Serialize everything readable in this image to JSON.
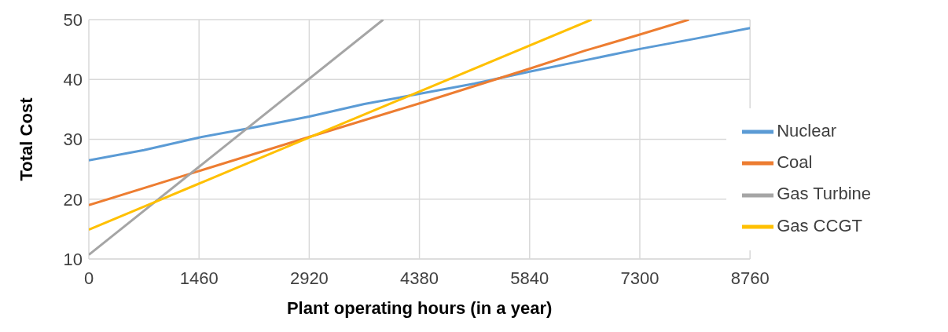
{
  "chart_data": {
    "type": "line",
    "xlabel": "Plant operating hours (in a year)",
    "ylabel": "Total Cost",
    "xlim": [
      0,
      8760
    ],
    "xticks": [
      0,
      1460,
      2920,
      4380,
      5840,
      7300,
      8760
    ],
    "ylim": [
      10,
      50
    ],
    "yticks": [
      10,
      20,
      30,
      40,
      50
    ],
    "grid": true,
    "legend": "right",
    "marker": "none",
    "line_style": "solid",
    "series": [
      {
        "name": "Nuclear",
        "color": "#5b9bd5",
        "x": [
          0,
          730,
          1460,
          2190,
          2920,
          3650,
          4380,
          5110,
          5840,
          6570,
          7300,
          8030,
          8760
        ],
        "values": [
          26.5,
          28.2,
          30.3,
          32,
          33.8,
          35.9,
          37.6,
          39.3,
          41.3,
          43.2,
          45.1,
          46.8,
          48.6
        ]
      },
      {
        "name": "Coal",
        "color": "#ed7d31",
        "x": [
          0,
          1460,
          2920,
          4380,
          5840,
          6570,
          7300,
          7950
        ],
        "values": [
          19,
          24.7,
          30.4,
          36,
          41.8,
          44.8,
          47.5,
          50
        ]
      },
      {
        "name": "Gas Turbine",
        "color": "#a5a5a5",
        "x": [
          0,
          3900
        ],
        "values": [
          10.7,
          50
        ]
      },
      {
        "name": "Gas CCGT",
        "color": "#ffc000",
        "x": [
          0,
          2920,
          6660
        ],
        "values": [
          14.9,
          30.3,
          50
        ]
      }
    ]
  }
}
